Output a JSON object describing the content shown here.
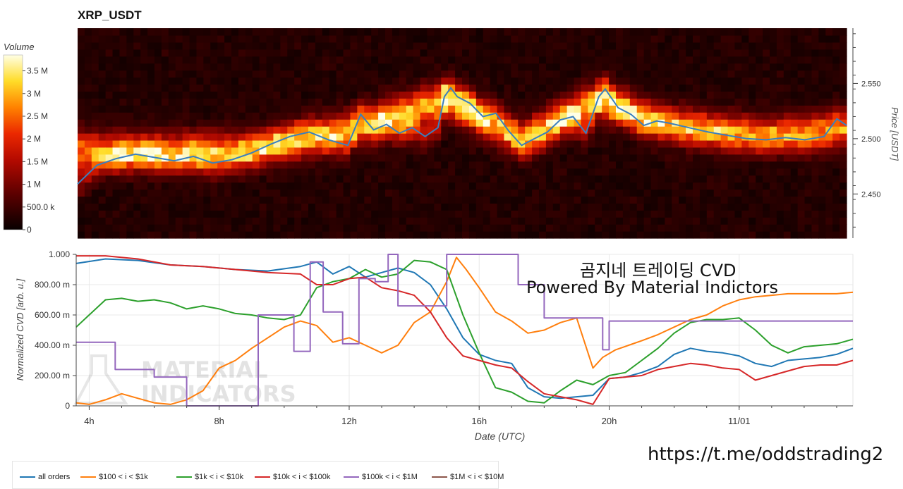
{
  "heatmap_title": "XRP_USDT",
  "colorbar": {
    "label": "Volume",
    "tick_labels": [
      "3.5 M",
      "3 M",
      "2.5 M",
      "2 M",
      "1.5 M",
      "1 M",
      "500.0 k",
      "0"
    ],
    "tick_values": [
      3500000,
      3000000,
      2500000,
      2000000,
      1500000,
      1000000,
      500000,
      0
    ]
  },
  "overlay_text": {
    "line1": "곰지네 트레이딩 CVD",
    "line2": "Powered By Material Indictors",
    "watermark1": "MATERIAL",
    "watermark2": "INDICATORS",
    "url": "https://t.me/oddstrading2"
  },
  "chart_data": [
    {
      "type": "heatmap",
      "title": "XRP_USDT",
      "ylabel": "Price [USDT]",
      "y_ticks": [
        "2.550",
        "2.500",
        "2.450"
      ],
      "y_tick_values": [
        2.55,
        2.5,
        2.45
      ],
      "ylim": [
        2.41,
        2.6
      ],
      "x_range_hours": [
        3.6,
        27.5
      ],
      "price_line_color": "#3a7fbf",
      "price_series": {
        "x": [
          3.6,
          4.2,
          4.8,
          5.4,
          6.0,
          6.6,
          7.2,
          7.8,
          8.4,
          9.0,
          9.6,
          10.2,
          10.8,
          11.4,
          12.0,
          12.4,
          12.8,
          13.2,
          13.6,
          14.0,
          14.4,
          14.8,
          15.0,
          15.2,
          15.4,
          15.8,
          16.2,
          16.6,
          17.0,
          17.4,
          17.8,
          18.2,
          18.6,
          19.0,
          19.4,
          19.8,
          20.0,
          20.4,
          20.8,
          21.2,
          21.6,
          22.0,
          22.6,
          23.2,
          23.8,
          24.4,
          25.0,
          25.6,
          26.2,
          26.8,
          27.2,
          27.5
        ],
        "y": [
          2.459,
          2.476,
          2.482,
          2.486,
          2.483,
          2.48,
          2.484,
          2.478,
          2.481,
          2.487,
          2.495,
          2.502,
          2.506,
          2.499,
          2.494,
          2.522,
          2.508,
          2.513,
          2.505,
          2.51,
          2.502,
          2.51,
          2.538,
          2.546,
          2.538,
          2.532,
          2.52,
          2.523,
          2.507,
          2.494,
          2.5,
          2.506,
          2.517,
          2.52,
          2.505,
          2.538,
          2.545,
          2.528,
          2.522,
          2.512,
          2.516,
          2.514,
          2.51,
          2.506,
          2.503,
          2.5,
          2.499,
          2.501,
          2.499,
          2.502,
          2.518,
          2.512
        ]
      },
      "volume_bands": [
        {
          "t": 3.6,
          "center": 2.49,
          "peak": 3000000
        },
        {
          "t": 6.0,
          "center": 2.488,
          "peak": 3400000
        },
        {
          "t": 9.0,
          "center": 2.49,
          "peak": 3000000
        },
        {
          "t": 12.0,
          "center": 2.508,
          "peak": 3100000
        },
        {
          "t": 15.0,
          "center": 2.536,
          "peak": 3700000
        },
        {
          "t": 17.4,
          "center": 2.5,
          "peak": 2800000
        },
        {
          "t": 19.8,
          "center": 2.536,
          "peak": 3700000
        },
        {
          "t": 22.0,
          "center": 2.512,
          "peak": 2800000
        },
        {
          "t": 25.0,
          "center": 2.504,
          "peak": 2600000
        },
        {
          "t": 27.5,
          "center": 2.508,
          "peak": 2600000
        }
      ]
    },
    {
      "type": "line",
      "xlabel": "Date (UTC)",
      "ylabel": "Normalized CVD [arb. u.]",
      "ylim": [
        0,
        1
      ],
      "x_ticks": [
        "4h",
        "8h",
        "12h",
        "16h",
        "20h",
        "11/01"
      ],
      "x_tick_values": [
        4,
        8,
        12,
        16,
        20,
        24
      ],
      "y_ticks": [
        "0",
        "200.00 m",
        "400.00 m",
        "600.00 m",
        "800.00 m",
        "1.000"
      ],
      "y_tick_values": [
        0,
        0.2,
        0.4,
        0.6,
        0.8,
        1.0
      ],
      "legend_position": "bottom",
      "series": [
        {
          "name": "all orders",
          "color": "#1f77b4",
          "x": [
            3.6,
            4.5,
            5.5,
            6.5,
            7.5,
            8.5,
            9.5,
            10.5,
            11.0,
            11.5,
            12.0,
            12.5,
            13.0,
            13.5,
            14.0,
            14.5,
            15.0,
            15.5,
            16.0,
            16.5,
            17.0,
            17.5,
            18.0,
            18.5,
            19.0,
            19.5,
            20.0,
            20.5,
            21.0,
            21.5,
            22.0,
            22.5,
            23.0,
            23.5,
            24.0,
            24.5,
            25.0,
            25.5,
            26.0,
            26.5,
            27.0,
            27.5
          ],
          "y": [
            0.94,
            0.97,
            0.96,
            0.93,
            0.92,
            0.9,
            0.89,
            0.92,
            0.95,
            0.87,
            0.92,
            0.85,
            0.88,
            0.91,
            0.88,
            0.8,
            0.64,
            0.45,
            0.34,
            0.3,
            0.28,
            0.12,
            0.06,
            0.05,
            0.06,
            0.07,
            0.18,
            0.19,
            0.22,
            0.26,
            0.34,
            0.38,
            0.36,
            0.35,
            0.33,
            0.28,
            0.26,
            0.3,
            0.31,
            0.32,
            0.34,
            0.38
          ]
        },
        {
          "name": "$100 < i < $1k",
          "color": "#ff7f0e",
          "x": [
            3.6,
            4.0,
            4.5,
            5.0,
            5.5,
            6.0,
            6.5,
            7.0,
            7.5,
            8.0,
            8.5,
            9.0,
            9.5,
            10.0,
            10.5,
            11.0,
            11.5,
            12.0,
            12.5,
            13.0,
            13.5,
            14.0,
            14.5,
            15.0,
            15.3,
            15.6,
            16.0,
            16.5,
            17.0,
            17.5,
            18.0,
            18.5,
            19.0,
            19.5,
            19.8,
            20.2,
            20.6,
            21.0,
            21.5,
            22.0,
            22.5,
            23.0,
            23.5,
            24.0,
            24.5,
            25.0,
            25.5,
            26.0,
            26.5,
            27.0,
            27.5
          ],
          "y": [
            0.02,
            0.01,
            0.04,
            0.08,
            0.05,
            0.02,
            0.01,
            0.04,
            0.1,
            0.25,
            0.3,
            0.38,
            0.45,
            0.52,
            0.56,
            0.53,
            0.42,
            0.45,
            0.4,
            0.35,
            0.4,
            0.55,
            0.62,
            0.82,
            0.98,
            0.9,
            0.78,
            0.62,
            0.56,
            0.48,
            0.5,
            0.55,
            0.58,
            0.25,
            0.32,
            0.37,
            0.4,
            0.43,
            0.47,
            0.52,
            0.57,
            0.6,
            0.66,
            0.7,
            0.72,
            0.73,
            0.74,
            0.74,
            0.74,
            0.74,
            0.75
          ]
        },
        {
          "name": "$1k < i < $10k",
          "color": "#2ca02c",
          "x": [
            3.6,
            4.0,
            4.5,
            5.0,
            5.5,
            6.0,
            6.5,
            7.0,
            7.5,
            8.0,
            8.5,
            9.0,
            9.5,
            10.0,
            10.5,
            11.0,
            11.5,
            12.0,
            12.5,
            13.0,
            13.5,
            14.0,
            14.5,
            15.0,
            15.5,
            16.0,
            16.5,
            17.0,
            17.5,
            18.0,
            18.5,
            19.0,
            19.5,
            20.0,
            20.5,
            21.0,
            21.5,
            22.0,
            22.5,
            23.0,
            23.5,
            24.0,
            24.5,
            25.0,
            25.5,
            26.0,
            26.5,
            27.0,
            27.5
          ],
          "y": [
            0.52,
            0.6,
            0.7,
            0.71,
            0.69,
            0.7,
            0.68,
            0.64,
            0.66,
            0.64,
            0.61,
            0.6,
            0.58,
            0.57,
            0.6,
            0.78,
            0.82,
            0.84,
            0.9,
            0.85,
            0.87,
            0.96,
            0.95,
            0.9,
            0.6,
            0.35,
            0.12,
            0.09,
            0.03,
            0.02,
            0.1,
            0.17,
            0.14,
            0.2,
            0.22,
            0.3,
            0.38,
            0.48,
            0.55,
            0.57,
            0.57,
            0.58,
            0.5,
            0.4,
            0.35,
            0.39,
            0.4,
            0.41,
            0.44
          ]
        },
        {
          "name": "$10k < i < $100k",
          "color": "#d62728",
          "x": [
            3.6,
            4.5,
            5.5,
            6.5,
            7.5,
            8.5,
            9.5,
            10.5,
            11.0,
            11.5,
            12.0,
            12.5,
            13.0,
            13.5,
            14.0,
            14.5,
            15.0,
            15.5,
            16.0,
            16.5,
            17.0,
            17.5,
            18.0,
            18.5,
            19.0,
            19.5,
            20.0,
            20.5,
            21.0,
            21.5,
            22.0,
            22.5,
            23.0,
            23.5,
            24.0,
            24.5,
            25.0,
            25.5,
            26.0,
            26.5,
            27.0,
            27.5
          ],
          "y": [
            0.99,
            0.99,
            0.97,
            0.93,
            0.92,
            0.9,
            0.88,
            0.87,
            0.8,
            0.8,
            0.84,
            0.85,
            0.78,
            0.76,
            0.73,
            0.62,
            0.45,
            0.33,
            0.3,
            0.27,
            0.25,
            0.16,
            0.08,
            0.06,
            0.04,
            0.01,
            0.18,
            0.19,
            0.2,
            0.24,
            0.26,
            0.28,
            0.27,
            0.25,
            0.24,
            0.17,
            0.2,
            0.23,
            0.26,
            0.27,
            0.27,
            0.3
          ]
        },
        {
          "name": "$100k < i < $1M",
          "color": "#9467bd",
          "step": true,
          "x": [
            3.6,
            4.8,
            6.0,
            7.0,
            9.0,
            9.2,
            10.3,
            10.8,
            11.2,
            11.8,
            12.3,
            12.8,
            13.2,
            13.5,
            14.5,
            15.0,
            16.0,
            16.8,
            17.2,
            18.0,
            19.0,
            19.5,
            19.8,
            20.0,
            21.0,
            24.0,
            27.5
          ],
          "y": [
            0.42,
            0.24,
            0.19,
            0.0,
            0.0,
            0.6,
            0.36,
            0.95,
            0.62,
            0.41,
            0.84,
            0.82,
            1.0,
            0.66,
            0.66,
            1.0,
            1.0,
            1.0,
            0.8,
            0.58,
            0.58,
            0.58,
            0.37,
            0.56,
            0.56,
            0.56,
            0.56
          ]
        },
        {
          "name": "$1M < i < $10M",
          "color": "#8c564b",
          "x": [],
          "y": []
        }
      ]
    }
  ]
}
